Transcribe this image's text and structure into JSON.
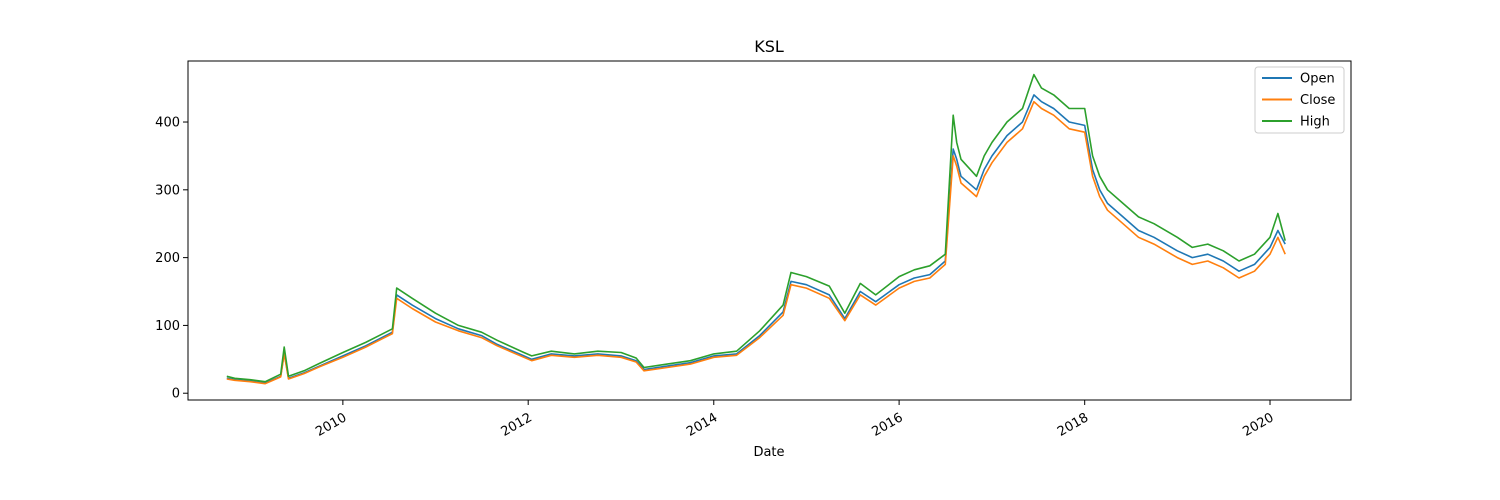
{
  "chart_data": {
    "type": "line",
    "title": "KSL",
    "xlabel": "Date",
    "ylabel": "",
    "ylim": [
      -10,
      490
    ],
    "xlim": [
      "2008-05-01",
      "2020-11-15"
    ],
    "x_ticks": [
      "2010",
      "2012",
      "2014",
      "2016",
      "2018",
      "2020"
    ],
    "y_ticks": [
      "0",
      "100",
      "200",
      "300",
      "400"
    ],
    "grid": false,
    "legend": {
      "placement": "top-right",
      "entries": [
        "Open",
        "Close",
        "High"
      ]
    },
    "colors": {
      "Open": "#1f77b4",
      "Close": "#ff7f0e",
      "High": "#2ca02c"
    },
    "x": [
      "2008-10-01",
      "2008-11-01",
      "2009-01-01",
      "2009-03-01",
      "2009-05-01",
      "2009-05-15",
      "2009-06-01",
      "2009-08-01",
      "2009-10-01",
      "2010-01-01",
      "2010-04-01",
      "2010-07-15",
      "2010-08-01",
      "2010-10-01",
      "2011-01-01",
      "2011-04-01",
      "2011-07-01",
      "2011-09-01",
      "2011-12-15",
      "2012-01-15",
      "2012-04-01",
      "2012-07-01",
      "2012-10-01",
      "2013-01-01",
      "2013-03-01",
      "2013-04-01",
      "2013-07-01",
      "2013-10-01",
      "2014-01-01",
      "2014-04-01",
      "2014-07-01",
      "2014-10-01",
      "2014-11-01",
      "2015-01-01",
      "2015-04-01",
      "2015-06-01",
      "2015-08-01",
      "2015-10-01",
      "2016-01-01",
      "2016-03-01",
      "2016-05-01",
      "2016-07-01",
      "2016-08-01",
      "2016-08-15",
      "2016-09-01",
      "2016-11-01",
      "2016-12-01",
      "2017-01-01",
      "2017-03-01",
      "2017-05-01",
      "2017-06-15",
      "2017-07-15",
      "2017-09-01",
      "2017-11-01",
      "2018-01-01",
      "2018-02-01",
      "2018-03-01",
      "2018-04-01",
      "2018-06-01",
      "2018-08-01",
      "2018-10-01",
      "2019-01-01",
      "2019-03-01",
      "2019-05-01",
      "2019-07-01",
      "2019-09-01",
      "2019-11-01",
      "2020-01-01",
      "2020-02-01",
      "2020-03-01"
    ],
    "series": [
      {
        "name": "Open",
        "values": [
          22,
          20,
          18,
          15,
          25,
          60,
          22,
          30,
          40,
          55,
          70,
          90,
          145,
          130,
          110,
          95,
          85,
          72,
          55,
          50,
          58,
          55,
          58,
          55,
          48,
          35,
          40,
          45,
          55,
          58,
          85,
          120,
          165,
          160,
          145,
          110,
          150,
          135,
          160,
          170,
          175,
          195,
          360,
          345,
          320,
          300,
          330,
          350,
          380,
          400,
          440,
          430,
          420,
          400,
          395,
          330,
          300,
          280,
          260,
          240,
          230,
          210,
          200,
          205,
          195,
          180,
          190,
          215,
          240,
          220
        ]
      },
      {
        "name": "Close",
        "values": [
          21,
          19,
          17,
          14,
          24,
          58,
          21,
          29,
          39,
          53,
          68,
          88,
          140,
          125,
          105,
          92,
          82,
          70,
          53,
          48,
          56,
          53,
          56,
          53,
          46,
          33,
          38,
          43,
          53,
          56,
          82,
          115,
          160,
          155,
          140,
          107,
          145,
          130,
          155,
          165,
          170,
          190,
          350,
          335,
          310,
          290,
          320,
          340,
          370,
          390,
          430,
          420,
          410,
          390,
          385,
          320,
          290,
          270,
          250,
          230,
          220,
          200,
          190,
          195,
          185,
          170,
          180,
          205,
          230,
          205
        ]
      },
      {
        "name": "High",
        "values": [
          25,
          22,
          20,
          17,
          28,
          68,
          25,
          33,
          44,
          60,
          75,
          95,
          155,
          140,
          118,
          100,
          90,
          78,
          60,
          55,
          62,
          58,
          62,
          60,
          52,
          38,
          43,
          48,
          58,
          62,
          92,
          130,
          178,
          172,
          158,
          118,
          162,
          145,
          172,
          182,
          188,
          205,
          410,
          370,
          345,
          320,
          350,
          370,
          400,
          420,
          470,
          450,
          440,
          420,
          420,
          350,
          320,
          300,
          280,
          260,
          250,
          230,
          215,
          220,
          210,
          195,
          205,
          230,
          265,
          225
        ]
      }
    ]
  }
}
